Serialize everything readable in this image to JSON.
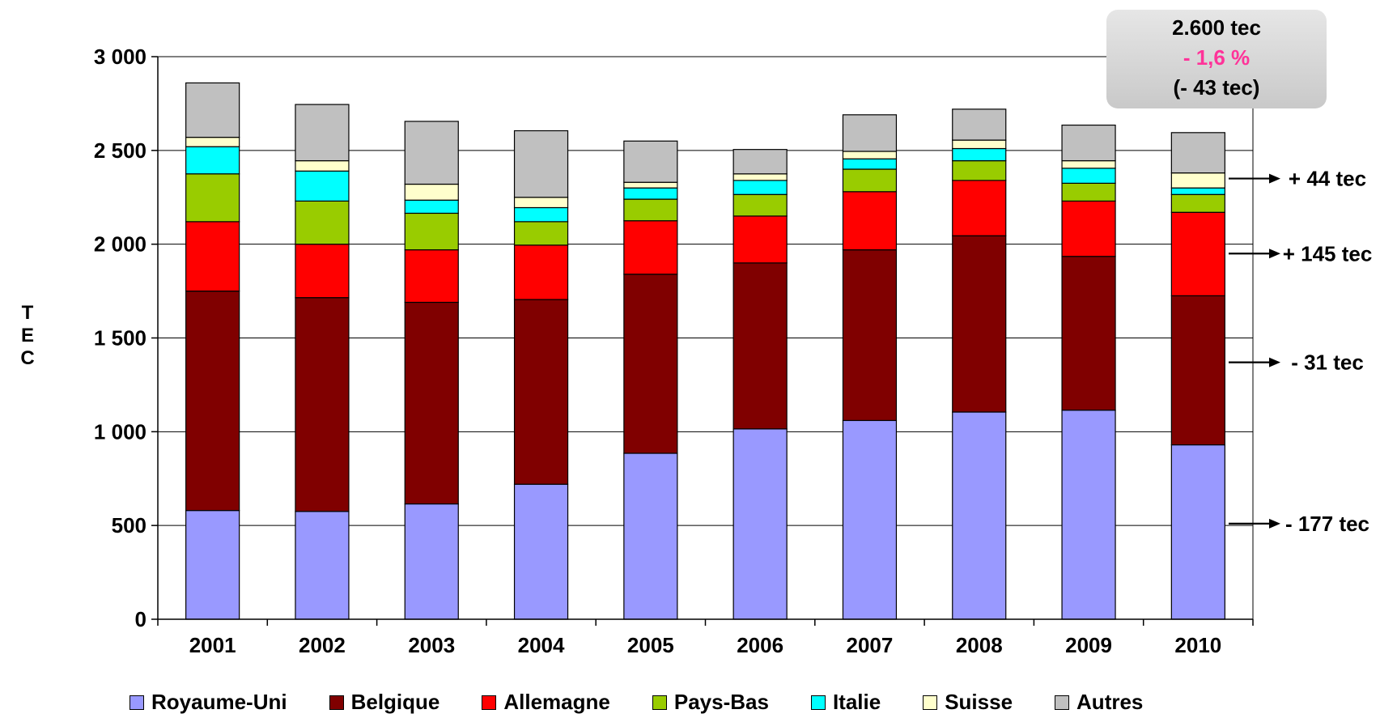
{
  "chart_data": {
    "type": "bar",
    "stacked": true,
    "categories": [
      "2001",
      "2002",
      "2003",
      "2004",
      "2005",
      "2006",
      "2007",
      "2008",
      "2009",
      "2010"
    ],
    "ylabel": "T\nE\nC",
    "ylim": [
      0,
      3000
    ],
    "yticks": [
      0,
      500,
      1000,
      1500,
      2000,
      2500,
      3000
    ],
    "ytick_labels": [
      "0",
      "500",
      "1 000",
      "1 500",
      "2 000",
      "2 500",
      "3 000"
    ],
    "grid": true,
    "legend": "bottom",
    "series": [
      {
        "name": "Royaume-Uni",
        "color": "#9999ff",
        "values": [
          580,
          575,
          615,
          720,
          885,
          1015,
          1060,
          1105,
          1115,
          930
        ]
      },
      {
        "name": "Belgique",
        "color": "#800000",
        "values": [
          1170,
          1140,
          1075,
          985,
          955,
          885,
          910,
          940,
          820,
          795
        ]
      },
      {
        "name": "Allemagne",
        "color": "#ff0000",
        "values": [
          370,
          285,
          280,
          290,
          285,
          250,
          310,
          295,
          295,
          445
        ]
      },
      {
        "name": "Pays-Bas",
        "color": "#99cc00",
        "values": [
          255,
          230,
          195,
          125,
          115,
          115,
          120,
          105,
          95,
          95
        ]
      },
      {
        "name": "Italie",
        "color": "#00ffff",
        "values": [
          145,
          160,
          70,
          75,
          60,
          75,
          55,
          65,
          80,
          35
        ]
      },
      {
        "name": "Suisse",
        "color": "#ffffcc",
        "values": [
          50,
          55,
          85,
          55,
          30,
          35,
          40,
          45,
          40,
          80
        ]
      },
      {
        "name": "Autres",
        "color": "#c0c0c0",
        "values": [
          290,
          300,
          335,
          355,
          220,
          130,
          195,
          165,
          190,
          215
        ]
      }
    ],
    "annotations": [
      {
        "text": "+ 44 tec",
        "y": 2350
      },
      {
        "text": "+ 145 tec",
        "y": 1950
      },
      {
        "text": "- 31 tec",
        "y": 1370
      },
      {
        "text": "- 177 tec",
        "y": 510
      }
    ],
    "callout": {
      "line1": "2.600 tec",
      "line2": "- 1,6 %",
      "line3": "(- 43 tec)"
    }
  }
}
